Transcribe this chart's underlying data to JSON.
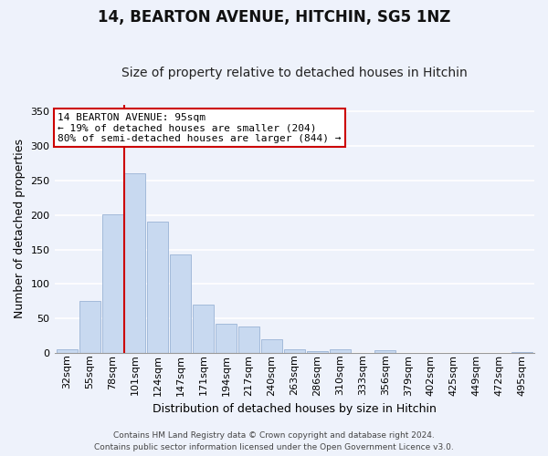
{
  "title": "14, BEARTON AVENUE, HITCHIN, SG5 1NZ",
  "subtitle": "Size of property relative to detached houses in Hitchin",
  "xlabel": "Distribution of detached houses by size in Hitchin",
  "ylabel": "Number of detached properties",
  "bar_labels": [
    "32sqm",
    "55sqm",
    "78sqm",
    "101sqm",
    "124sqm",
    "147sqm",
    "171sqm",
    "194sqm",
    "217sqm",
    "240sqm",
    "263sqm",
    "286sqm",
    "310sqm",
    "333sqm",
    "356sqm",
    "379sqm",
    "402sqm",
    "425sqm",
    "449sqm",
    "472sqm",
    "495sqm"
  ],
  "bar_values": [
    5,
    75,
    201,
    261,
    191,
    143,
    70,
    43,
    39,
    20,
    5,
    3,
    6,
    0,
    4,
    0,
    0,
    0,
    0,
    0,
    1
  ],
  "bar_color": "#c8d9f0",
  "bar_edge_color": "#9ab3d5",
  "vline_x_index": 3,
  "vline_color": "#cc0000",
  "annotation_text": "14 BEARTON AVENUE: 95sqm\n← 19% of detached houses are smaller (204)\n80% of semi-detached houses are larger (844) →",
  "annotation_box_color": "white",
  "annotation_box_edge": "#cc0000",
  "ylim": [
    0,
    360
  ],
  "yticks": [
    0,
    50,
    100,
    150,
    200,
    250,
    300,
    350
  ],
  "footer_line1": "Contains HM Land Registry data © Crown copyright and database right 2024.",
  "footer_line2": "Contains public sector information licensed under the Open Government Licence v3.0.",
  "background_color": "#eef2fb",
  "grid_color": "white",
  "title_fontsize": 12,
  "subtitle_fontsize": 10,
  "ylabel_fontsize": 9,
  "xlabel_fontsize": 9,
  "tick_fontsize": 8,
  "footer_fontsize": 6.5
}
